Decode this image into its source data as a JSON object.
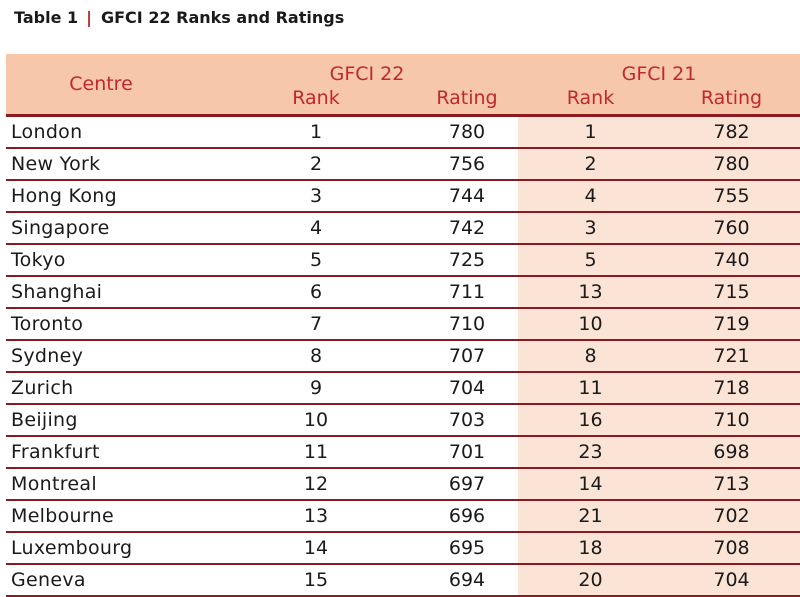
{
  "caption": {
    "label": "Table 1",
    "separator": "|",
    "title": "GFCI 22 Ranks and Ratings"
  },
  "colors": {
    "header_bg": "#f6c7a8",
    "header_text": "#c0282f",
    "row_rule": "#8b1b22",
    "gfci21_bg": "#fbe4d5"
  },
  "header": {
    "centre": "Centre",
    "gfci22": "GFCI 22",
    "gfci21": "GFCI 21",
    "rank": "Rank",
    "rating": "Rating"
  },
  "rows": [
    {
      "centre": "London",
      "g22_rank": "1",
      "g22_rating": "780",
      "g21_rank": "1",
      "g21_rating": "782"
    },
    {
      "centre": "New York",
      "g22_rank": "2",
      "g22_rating": "756",
      "g21_rank": "2",
      "g21_rating": "780"
    },
    {
      "centre": "Hong Kong",
      "g22_rank": "3",
      "g22_rating": "744",
      "g21_rank": "4",
      "g21_rating": "755"
    },
    {
      "centre": "Singapore",
      "g22_rank": "4",
      "g22_rating": "742",
      "g21_rank": "3",
      "g21_rating": "760"
    },
    {
      "centre": "Tokyo",
      "g22_rank": "5",
      "g22_rating": "725",
      "g21_rank": "5",
      "g21_rating": "740"
    },
    {
      "centre": "Shanghai",
      "g22_rank": "6",
      "g22_rating": "711",
      "g21_rank": "13",
      "g21_rating": "715"
    },
    {
      "centre": "Toronto",
      "g22_rank": "7",
      "g22_rating": "710",
      "g21_rank": "10",
      "g21_rating": "719"
    },
    {
      "centre": "Sydney",
      "g22_rank": "8",
      "g22_rating": "707",
      "g21_rank": "8",
      "g21_rating": "721"
    },
    {
      "centre": "Zurich",
      "g22_rank": "9",
      "g22_rating": "704",
      "g21_rank": "11",
      "g21_rating": "718"
    },
    {
      "centre": "Beijing",
      "g22_rank": "10",
      "g22_rating": "703",
      "g21_rank": "16",
      "g21_rating": "710"
    },
    {
      "centre": "Frankfurt",
      "g22_rank": "11",
      "g22_rating": "701",
      "g21_rank": "23",
      "g21_rating": "698"
    },
    {
      "centre": "Montreal",
      "g22_rank": "12",
      "g22_rating": "697",
      "g21_rank": "14",
      "g21_rating": "713"
    },
    {
      "centre": "Melbourne",
      "g22_rank": "13",
      "g22_rating": "696",
      "g21_rank": "21",
      "g21_rating": "702"
    },
    {
      "centre": "Luxembourg",
      "g22_rank": "14",
      "g22_rating": "695",
      "g21_rank": "18",
      "g21_rating": "708"
    },
    {
      "centre": "Geneva",
      "g22_rank": "15",
      "g22_rating": "694",
      "g21_rank": "20",
      "g21_rating": "704"
    }
  ]
}
